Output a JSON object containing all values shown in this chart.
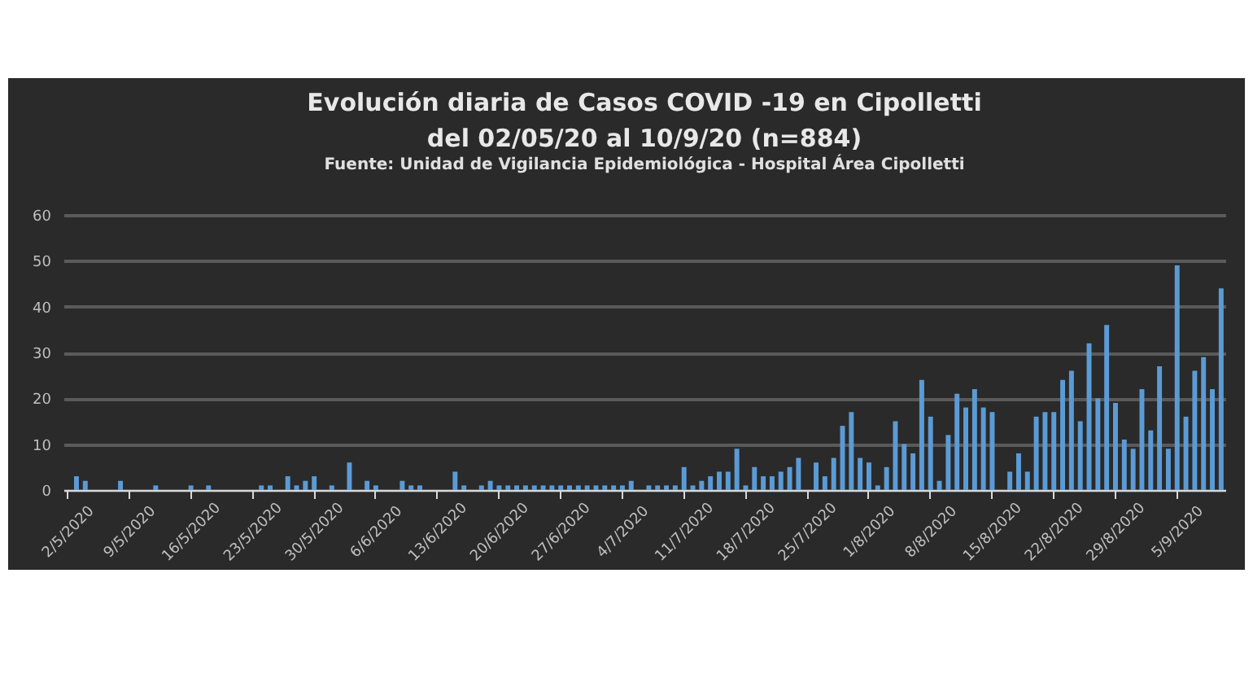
{
  "chart_data": {
    "type": "bar",
    "title": "Evolución diaria de Casos COVID -19 en Cipolletti\ndel 02/05/20 al 10/9/20  (n=884)",
    "subtitle": "Fuente: Unidad de Vigilancia Epidemiológica - Hospital Área Cipolletti",
    "categories": [
      "2/5/2020",
      null,
      null,
      null,
      null,
      null,
      null,
      "9/5/2020",
      null,
      null,
      null,
      null,
      null,
      null,
      "16/5/2020",
      null,
      null,
      null,
      null,
      null,
      null,
      "23/5/2020",
      null,
      null,
      null,
      null,
      null,
      null,
      "30/5/2020",
      null,
      null,
      null,
      null,
      null,
      null,
      "6/6/2020",
      null,
      null,
      null,
      null,
      null,
      null,
      "13/6/2020",
      null,
      null,
      null,
      null,
      null,
      null,
      "20/6/2020",
      null,
      null,
      null,
      null,
      null,
      null,
      "27/6/2020",
      null,
      null,
      null,
      null,
      null,
      null,
      "4/7/2020",
      null,
      null,
      null,
      null,
      null,
      null,
      "11/7/2020",
      null,
      null,
      null,
      null,
      null,
      null,
      "18/7/2020",
      null,
      null,
      null,
      null,
      null,
      null,
      "25/7/2020",
      null,
      null,
      null,
      null,
      null,
      null,
      "1/8/2020",
      null,
      null,
      null,
      null,
      null,
      null,
      "8/8/2020",
      null,
      null,
      null,
      null,
      null,
      null,
      "15/8/2020",
      null,
      null,
      null,
      null,
      null,
      null,
      "22/8/2020",
      null,
      null,
      null,
      null,
      null,
      null,
      "29/8/2020",
      null,
      null,
      null,
      null,
      null,
      null,
      "5/9/2020",
      null,
      null,
      null,
      null,
      null
    ],
    "values": [
      null,
      3,
      2,
      null,
      null,
      null,
      2,
      null,
      null,
      null,
      1,
      null,
      null,
      null,
      1,
      null,
      1,
      null,
      null,
      null,
      null,
      null,
      1,
      1,
      null,
      3,
      1,
      2,
      3,
      null,
      1,
      null,
      6,
      null,
      2,
      1,
      null,
      null,
      2,
      1,
      1,
      null,
      null,
      null,
      4,
      1,
      null,
      1,
      2,
      1,
      1,
      1,
      1,
      1,
      1,
      1,
      1,
      1,
      1,
      1,
      1,
      1,
      1,
      1,
      2,
      null,
      1,
      1,
      1,
      1,
      5,
      1,
      2,
      3,
      4,
      4,
      9,
      1,
      5,
      3,
      3,
      4,
      5,
      7,
      null,
      6,
      3,
      7,
      14,
      17,
      7,
      6,
      1,
      5,
      15,
      10,
      8,
      24,
      16,
      2,
      12,
      21,
      18,
      22,
      18,
      17,
      null,
      4,
      8,
      4,
      16,
      17,
      17,
      24,
      26,
      15,
      32,
      20,
      36,
      19,
      11,
      9,
      22,
      13,
      27,
      9,
      49,
      16,
      26,
      29,
      22,
      44
    ],
    "color": "#5b9bd5",
    "ylim": [
      0,
      60
    ],
    "yticks": [
      0,
      10,
      20,
      30,
      40,
      50,
      60
    ],
    "grid": "y"
  }
}
